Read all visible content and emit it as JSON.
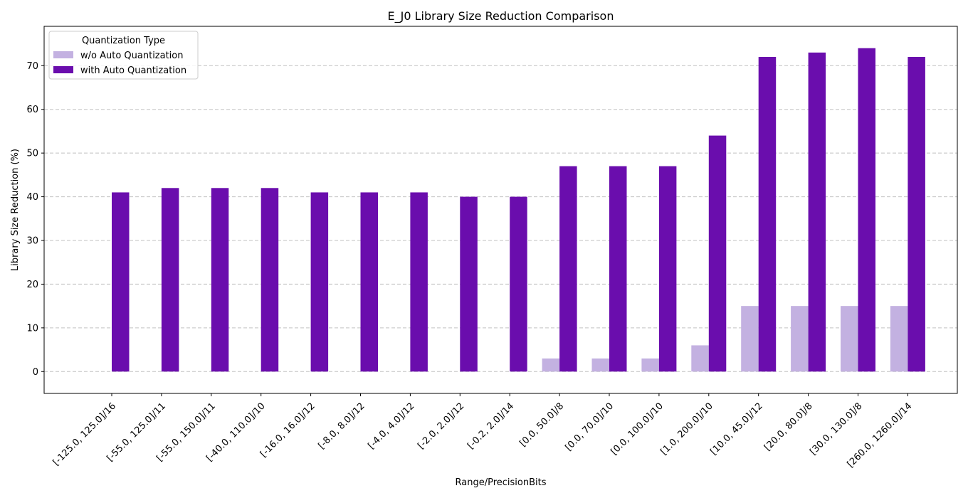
{
  "chart_data": {
    "type": "bar",
    "title": "E_J0 Library Size Reduction Comparison",
    "xlabel": "Range/PrecisionBits",
    "ylabel": "Library Size Reduction (%)",
    "ylim": [
      -5,
      79
    ],
    "yticks": [
      0,
      10,
      20,
      30,
      40,
      50,
      60,
      70
    ],
    "grid": "y",
    "legend": {
      "title": "Quantization Type",
      "placement": "top-left"
    },
    "categories": [
      "[-125.0, 125.0]/16",
      "[-55.0, 125.0]/11",
      "[-55.0, 150.0]/11",
      "[-40.0, 110.0]/10",
      "[-16.0, 16.0]/12",
      "[-8.0, 8.0]/12",
      "[-4.0, 4.0]/12",
      "[-2.0, 2.0]/12",
      "[-0.2, 2.0]/14",
      "[0.0, 50.0]/8",
      "[0.0, 70.0]/10",
      "[0.0, 100.0]/10",
      "[1.0, 200.0]/10",
      "[10.0, 45.0]/12",
      "[20.0, 80.0]/8",
      "[30.0, 130.0]/8",
      "[260.0, 1260.0]/14"
    ],
    "series": [
      {
        "name": "w/o Auto Quantization",
        "color": "#c3b1e1",
        "values": [
          0,
          0,
          0,
          0,
          0,
          0,
          0,
          0,
          0,
          3,
          3,
          3,
          6,
          15,
          15,
          15,
          15
        ]
      },
      {
        "name": "with Auto Quantization",
        "color": "#6a0dad",
        "values": [
          41,
          42,
          42,
          42,
          41,
          41,
          41,
          40,
          40,
          47,
          47,
          47,
          54,
          72,
          73,
          74,
          72
        ]
      }
    ]
  }
}
